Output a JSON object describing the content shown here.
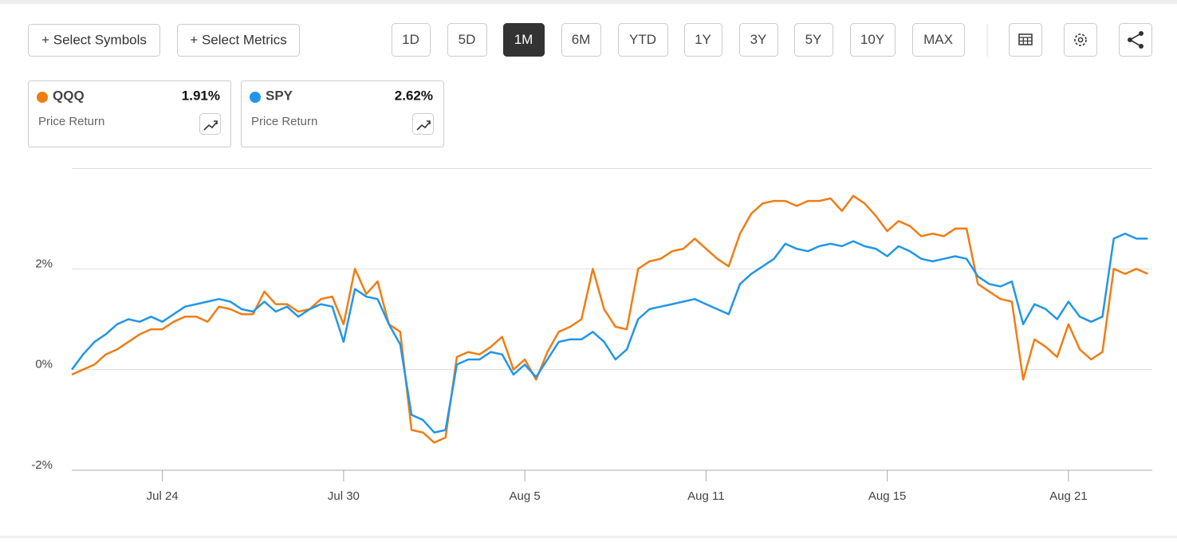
{
  "toolbar": {
    "symbols_button": "+ Select Symbols",
    "metrics_button": "+ Select Metrics",
    "ranges": [
      "1D",
      "5D",
      "1M",
      "6M",
      "YTD",
      "1Y",
      "3Y",
      "5Y",
      "10Y",
      "MAX"
    ]
  },
  "cards": [
    {
      "value": "1.91%",
      "metric": "Price Return"
    },
    {
      "value": "2.62%",
      "metric": "Price Return"
    }
  ],
  "chart_data": {
    "type": "line",
    "x": [
      0,
      0.25,
      0.5,
      0.75,
      1,
      1.25,
      1.5,
      1.75,
      2,
      2.25,
      2.5,
      2.75,
      3,
      3.25,
      3.5,
      3.75,
      4,
      4.25,
      4.5,
      4.75,
      5,
      5.25,
      5.5,
      5.75,
      6,
      6.25,
      6.5,
      6.75,
      7,
      7.25,
      7.5,
      7.75,
      8,
      8.25,
      8.5,
      8.75,
      9,
      9.25,
      9.5,
      9.75,
      10,
      10.25,
      10.5,
      10.75,
      11,
      11.25,
      11.5,
      11.75,
      12,
      12.25,
      12.5,
      12.75,
      13,
      13.25,
      13.5,
      13.75,
      14,
      14.25,
      14.5,
      14.75,
      15,
      15.25,
      15.5,
      15.75,
      16,
      16.25,
      16.5,
      16.75,
      17,
      17.25,
      17.5,
      17.75,
      18,
      18.25,
      18.5,
      18.75,
      19,
      19.25,
      19.5,
      19.75,
      20,
      20.25,
      20.5,
      20.75,
      21,
      21.25,
      21.5,
      21.75,
      22,
      22.25,
      22.5,
      22.75,
      23,
      23.25,
      23.5,
      23.75
    ],
    "series": [
      {
        "name": "QQQ",
        "color": "#f07d14",
        "values": [
          -0.1,
          0.0,
          0.1,
          0.3,
          0.4,
          0.55,
          0.7,
          0.8,
          0.8,
          0.95,
          1.05,
          1.05,
          0.95,
          1.25,
          1.2,
          1.1,
          1.1,
          1.55,
          1.3,
          1.3,
          1.15,
          1.2,
          1.4,
          1.45,
          0.9,
          2.0,
          1.5,
          1.75,
          0.9,
          0.75,
          -1.2,
          -1.25,
          -1.45,
          -1.35,
          0.25,
          0.35,
          0.3,
          0.45,
          0.65,
          0.0,
          0.2,
          -0.2,
          0.35,
          0.75,
          0.85,
          1.0,
          2.0,
          1.2,
          0.85,
          0.8,
          2.0,
          2.15,
          2.2,
          2.35,
          2.4,
          2.6,
          2.4,
          2.2,
          2.05,
          2.7,
          3.1,
          3.3,
          3.35,
          3.35,
          3.25,
          3.35,
          3.35,
          3.4,
          3.15,
          3.45,
          3.3,
          3.05,
          2.75,
          2.95,
          2.85,
          2.65,
          2.7,
          2.65,
          2.8,
          2.8,
          1.7,
          1.55,
          1.4,
          1.35,
          -0.2,
          0.6,
          0.45,
          0.25,
          0.9,
          0.4,
          0.2,
          0.35,
          2.0,
          1.9,
          2.0,
          1.9
        ]
      },
      {
        "name": "SPY",
        "color": "#2196e8",
        "values": [
          0.0,
          0.3,
          0.55,
          0.7,
          0.9,
          1.0,
          0.95,
          1.05,
          0.95,
          1.1,
          1.25,
          1.3,
          1.35,
          1.4,
          1.35,
          1.2,
          1.15,
          1.35,
          1.15,
          1.25,
          1.05,
          1.2,
          1.3,
          1.25,
          0.55,
          1.6,
          1.45,
          1.4,
          0.9,
          0.5,
          -0.9,
          -1.0,
          -1.25,
          -1.2,
          0.1,
          0.2,
          0.2,
          0.35,
          0.3,
          -0.1,
          0.1,
          -0.15,
          0.2,
          0.55,
          0.6,
          0.6,
          0.75,
          0.55,
          0.2,
          0.4,
          1.0,
          1.2,
          1.25,
          1.3,
          1.35,
          1.4,
          1.3,
          1.2,
          1.1,
          1.7,
          1.9,
          2.05,
          2.2,
          2.5,
          2.4,
          2.35,
          2.45,
          2.5,
          2.45,
          2.55,
          2.45,
          2.4,
          2.25,
          2.45,
          2.35,
          2.2,
          2.15,
          2.2,
          2.25,
          2.2,
          1.85,
          1.7,
          1.65,
          1.75,
          0.9,
          1.3,
          1.2,
          1.0,
          1.35,
          1.05,
          0.95,
          1.05,
          2.6,
          2.7,
          2.6,
          2.6
        ]
      }
    ],
    "xlim": [
      0,
      23.85
    ],
    "xticks": [
      {
        "value": 2,
        "label": "Jul 24"
      },
      {
        "value": 6,
        "label": "Jul 30"
      },
      {
        "value": 10,
        "label": "Aug 5"
      },
      {
        "value": 14,
        "label": "Aug 11"
      },
      {
        "value": 18,
        "label": "Aug 15"
      },
      {
        "value": 22,
        "label": "Aug 21"
      }
    ],
    "ylim": [
      -2,
      4
    ],
    "yticks": [
      {
        "value": -2,
        "label": "-2%"
      },
      {
        "value": 0,
        "label": "0%"
      },
      {
        "value": 2,
        "label": "2%"
      }
    ],
    "grid": true
  }
}
